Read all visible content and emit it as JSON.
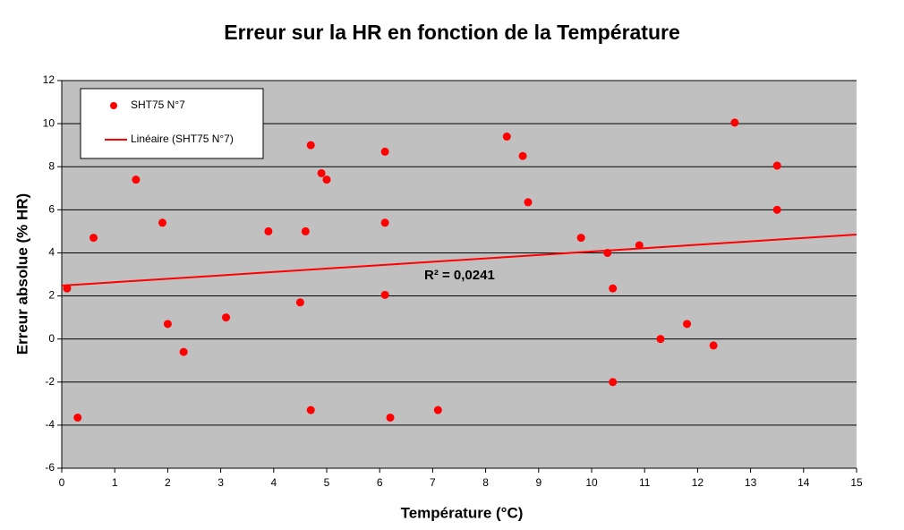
{
  "chart_data": {
    "type": "scatter",
    "title": "Erreur sur la HR en fonction de la Température",
    "xlabel": "Température (°C)",
    "ylabel": "Erreur absolue (% HR)",
    "xlim": [
      0,
      15
    ],
    "ylim": [
      -6,
      12
    ],
    "xticks": [
      0,
      1,
      2,
      3,
      4,
      5,
      6,
      7,
      8,
      9,
      10,
      11,
      12,
      13,
      14,
      15
    ],
    "yticks": [
      -6,
      -4,
      -2,
      0,
      2,
      4,
      6,
      8,
      10,
      12
    ],
    "grid": true,
    "legend": "top-left",
    "annotation": "R² = 0,0241",
    "series": [
      {
        "name": "SHT75 N°7",
        "color": "#ff0000",
        "type": "scatter",
        "x": [
          0.1,
          0.3,
          0.6,
          1.4,
          1.9,
          2.0,
          2.3,
          3.1,
          3.9,
          4.5,
          4.6,
          4.7,
          4.7,
          4.9,
          5.0,
          6.1,
          6.1,
          6.1,
          6.2,
          7.1,
          8.4,
          8.7,
          8.8,
          9.8,
          10.3,
          10.4,
          10.4,
          10.9,
          11.3,
          11.8,
          12.3,
          12.7,
          13.5,
          13.5
        ],
        "values": [
          2.35,
          -3.65,
          4.7,
          7.4,
          5.4,
          0.7,
          -0.6,
          1.0,
          5.0,
          1.7,
          5.0,
          9.0,
          -3.3,
          7.7,
          7.4,
          8.7,
          5.4,
          2.05,
          -3.65,
          -3.3,
          9.4,
          8.5,
          6.35,
          4.7,
          4.0,
          2.35,
          -2.0,
          4.35,
          0.0,
          0.7,
          -0.3,
          10.05,
          8.05,
          6.0
        ]
      },
      {
        "name": "Linéaire (SHT75 N°7)",
        "color": "#ff0000",
        "type": "line",
        "x": [
          0,
          15
        ],
        "values": [
          2.48,
          4.85
        ]
      }
    ]
  }
}
